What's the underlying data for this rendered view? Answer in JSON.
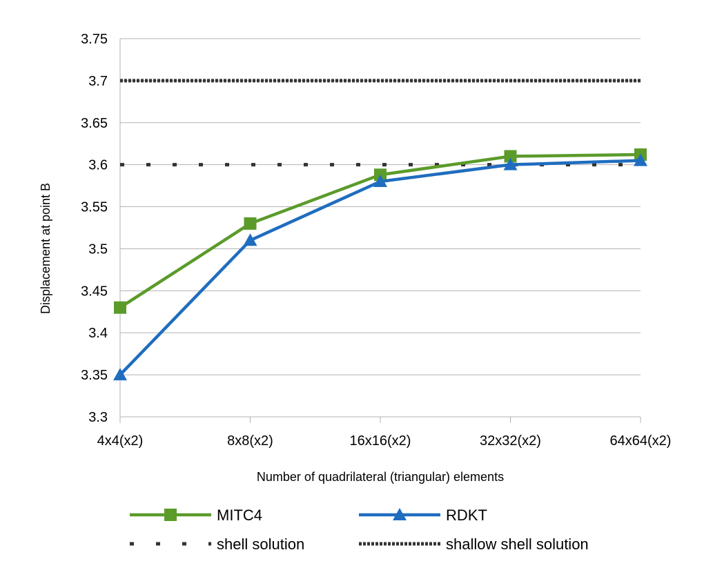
{
  "chart_data": {
    "type": "line",
    "title": "",
    "xlabel": "Number of quadrilateral (triangular) elements",
    "ylabel": "Displacement at point B",
    "categories": [
      "4x4(x2)",
      "8x8(x2)",
      "16x16(x2)",
      "32x32(x2)",
      "64x64(x2)"
    ],
    "ylim": [
      3.3,
      3.75
    ],
    "yticks": [
      "3.3",
      "3.35",
      "3.4",
      "3.45",
      "3.5",
      "3.55",
      "3.6",
      "3.65",
      "3.7",
      "3.75"
    ],
    "grid": "horizontal",
    "legend_position": "bottom",
    "series": [
      {
        "name": "MITC4",
        "values": [
          3.43,
          3.53,
          3.588,
          3.61,
          3.612
        ],
        "color": "#5b9b2a",
        "marker": "square",
        "style": "solid"
      },
      {
        "name": "RDKT",
        "values": [
          3.35,
          3.51,
          3.58,
          3.6,
          3.605
        ],
        "color": "#1f6dbf",
        "marker": "triangle",
        "style": "solid"
      },
      {
        "name": "shell solution",
        "values": [
          3.6,
          3.6,
          3.6,
          3.6,
          3.6
        ],
        "color": "#333333",
        "marker": "none",
        "style": "sparse-dotted"
      },
      {
        "name": "shallow shell solution",
        "values": [
          3.7,
          3.7,
          3.7,
          3.7,
          3.7
        ],
        "color": "#333333",
        "marker": "none",
        "style": "dense-dotted"
      }
    ]
  }
}
